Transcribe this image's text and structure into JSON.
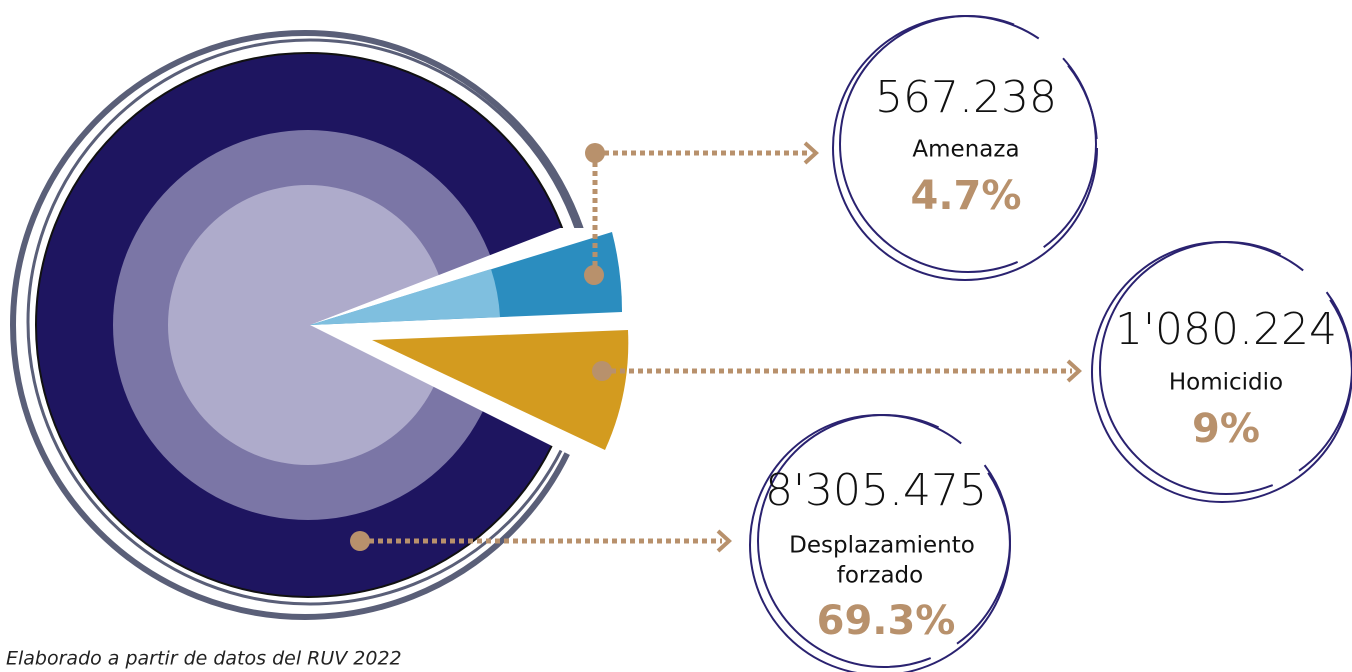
{
  "items": [
    {
      "number": "567.238",
      "label": "Amenaza",
      "percent": "4.7%"
    },
    {
      "number": "1'080.224",
      "label": "Homicidio",
      "percent": "9%"
    },
    {
      "number": "8'305.475",
      "label_lines": [
        "Desplazamiento",
        "forzado"
      ],
      "percent": "69.3%"
    }
  ],
  "source": "Elaborado a partir de datos del RUV 2022"
}
